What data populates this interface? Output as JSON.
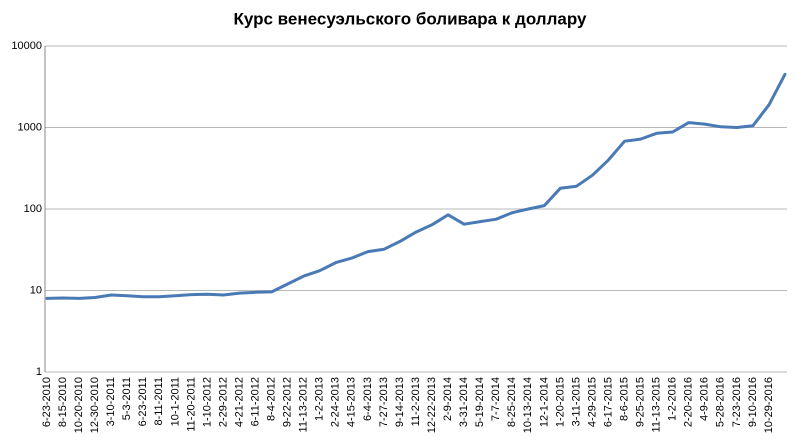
{
  "chart_data": {
    "type": "line",
    "title": "Курс венесуэльского боливара к доллару",
    "categories": [
      "6-23-2010",
      "8-15-2010",
      "10-20-2010",
      "12-30-2010",
      "3-10-2011",
      "5-3-2011",
      "6-23-2011",
      "8-11-2011",
      "10-1-2011",
      "11-20-2011",
      "1-10-2012",
      "2-29-2012",
      "4-21-2012",
      "6-11-2012",
      "8-4-2012",
      "9-22-2012",
      "11-13-2012",
      "1-2-2013",
      "2-24-2013",
      "4-15-2013",
      "6-4-2013",
      "7-27-2013",
      "9-14-2013",
      "11-2-2013",
      "12-22-2013",
      "2-9-2014",
      "3-31-2014",
      "5-19-2014",
      "7-7-2014",
      "8-25-2014",
      "10-13-2014",
      "12-1-2014",
      "1-20-2015",
      "3-11-2015",
      "4-29-2015",
      "6-17-2015",
      "8-6-2015",
      "9-25-2015",
      "11-13-2015",
      "1-2-2016",
      "2-20-2016",
      "4-9-2016",
      "5-28-2016",
      "7-23-2016",
      "9-10-2016",
      "10-29-2016",
      null
    ],
    "values": [
      8,
      8.1,
      8,
      8.2,
      8.8,
      8.6,
      8.4,
      8.4,
      8.6,
      8.9,
      9.0,
      8.8,
      9.3,
      9.5,
      9.6,
      12,
      15,
      17.5,
      22,
      25,
      30,
      32,
      40,
      52,
      64,
      85,
      65,
      70,
      75,
      90,
      100,
      110,
      180,
      190,
      260,
      400,
      680,
      720,
      850,
      880,
      1150,
      1100,
      1020,
      1000,
      1050,
      1900,
      4500
    ],
    "color": "#4a7ab5",
    "log_scale": true,
    "ylim": [
      1,
      10000
    ],
    "yticks": [
      1,
      10,
      100,
      1000,
      10000
    ],
    "grid": true
  }
}
